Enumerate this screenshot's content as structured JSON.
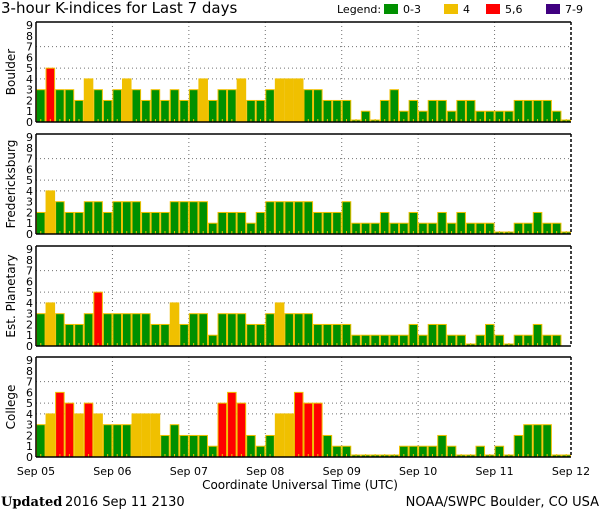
{
  "chart_data": [
    {
      "type": "bar",
      "title": "3-hour K-indices for Last 7 days",
      "station": "Boulder",
      "ylabel": "Boulder",
      "ylim": [
        0,
        9
      ],
      "yticks": [
        "0",
        "1",
        "2",
        "3",
        "4",
        "5",
        "6",
        "7",
        "8",
        "9"
      ],
      "values": [
        3,
        5,
        3,
        3,
        2,
        4,
        3,
        2,
        3,
        4,
        3,
        2,
        3,
        2,
        3,
        2,
        3,
        4,
        2,
        3,
        3,
        4,
        2,
        2,
        3,
        4,
        4,
        4,
        3,
        3,
        2,
        2,
        2,
        0,
        1,
        0,
        2,
        3,
        1,
        2,
        1,
        2,
        2,
        1,
        2,
        2,
        1,
        1,
        1,
        1,
        2,
        2,
        2,
        2,
        1,
        0
      ]
    },
    {
      "type": "bar",
      "station": "Fredericksburg",
      "ylabel": "Fredericksburg",
      "ylim": [
        0,
        9
      ],
      "yticks": [
        "0",
        "1",
        "2",
        "3",
        "4",
        "5",
        "6",
        "7",
        "8",
        "9"
      ],
      "values": [
        2,
        4,
        3,
        2,
        2,
        3,
        3,
        2,
        3,
        3,
        3,
        2,
        2,
        2,
        3,
        3,
        3,
        3,
        1,
        2,
        2,
        2,
        1,
        2,
        3,
        3,
        3,
        3,
        3,
        2,
        2,
        2,
        3,
        1,
        1,
        1,
        2,
        1,
        1,
        2,
        1,
        1,
        2,
        1,
        2,
        1,
        1,
        1,
        0,
        0,
        1,
        1,
        2,
        1,
        1,
        0
      ]
    },
    {
      "type": "bar",
      "station": "Est. Planetary",
      "ylabel": "Est. Planetary",
      "ylim": [
        0,
        9
      ],
      "yticks": [
        "0",
        "1",
        "2",
        "3",
        "4",
        "5",
        "6",
        "7",
        "8",
        "9"
      ],
      "values": [
        3,
        4,
        3,
        2,
        2,
        3,
        5,
        3,
        3,
        3,
        3,
        3,
        2,
        2,
        4,
        2,
        3,
        3,
        1,
        3,
        3,
        3,
        2,
        2,
        3,
        4,
        3,
        3,
        3,
        2,
        2,
        2,
        2,
        1,
        1,
        1,
        1,
        1,
        1,
        2,
        1,
        2,
        2,
        1,
        1,
        0,
        1,
        2,
        1,
        0,
        1,
        1,
        2,
        1,
        1,
        null
      ]
    },
    {
      "type": "bar",
      "station": "College",
      "ylabel": "College",
      "ylim": [
        0,
        9
      ],
      "yticks": [
        "0",
        "1",
        "2",
        "3",
        "4",
        "5",
        "6",
        "7",
        "8",
        "9"
      ],
      "values": [
        3,
        4,
        6,
        5,
        4,
        5,
        4,
        3,
        3,
        3,
        4,
        4,
        4,
        2,
        3,
        2,
        2,
        2,
        1,
        5,
        6,
        5,
        2,
        1,
        2,
        4,
        4,
        6,
        5,
        5,
        2,
        1,
        1,
        0,
        0,
        0,
        0,
        0,
        1,
        1,
        1,
        1,
        2,
        1,
        0,
        0,
        1,
        0,
        1,
        0,
        2,
        3,
        3,
        3,
        0,
        0
      ]
    }
  ],
  "title": "3-hour K-indices for Last 7 days",
  "xticks": [
    "Sep 05",
    "Sep 06",
    "Sep 07",
    "Sep 08",
    "Sep 09",
    "Sep 10",
    "Sep 11",
    "Sep 12"
  ],
  "xlabel": "Coordinate Universal Time (UTC)",
  "grid": {
    "vertical": "days",
    "horizontal": [
      4,
      5,
      7
    ]
  },
  "legend": {
    "label": "Legend:",
    "placement": "top-right",
    "items": [
      {
        "label": "0-3",
        "color": "#009000"
      },
      {
        "label": "4",
        "color": "#f0c000"
      },
      {
        "label": "5,6",
        "color": "#ff0000"
      },
      {
        "label": "7-9",
        "color": "#400080"
      }
    ]
  },
  "colors": {
    "bar_border": "#f0c000",
    "grid": "#707070"
  },
  "footer": {
    "updated_label": "Updated",
    "updated_value": "2016 Sep 11 2130",
    "credit": "NOAA/SWPC Boulder, CO USA"
  }
}
